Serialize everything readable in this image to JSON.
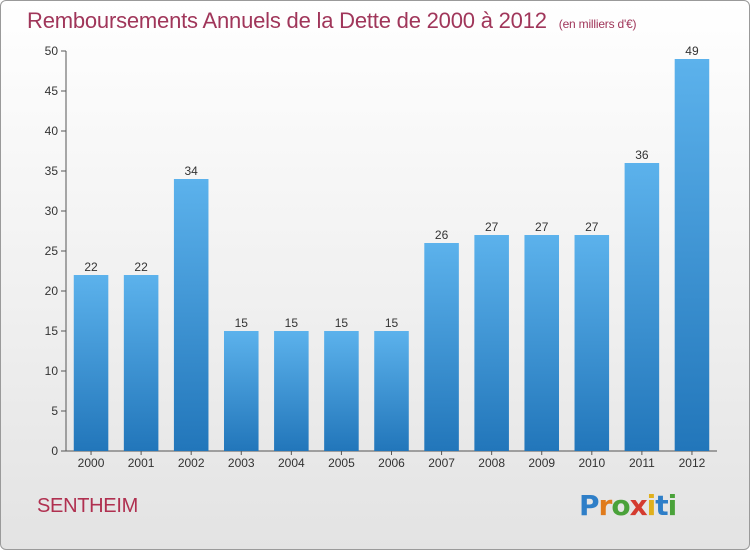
{
  "header": {
    "title": "Remboursements Annuels de la Dette de 2000 à 2012",
    "unit": "(en milliers d'€)"
  },
  "footer": {
    "commune": "SENTHEIM",
    "brand": {
      "letters": [
        "P",
        "r",
        "o",
        "x",
        "i",
        "t",
        "i"
      ],
      "colors": [
        "#2f7fc8",
        "#e07b1c",
        "#4aa23a",
        "#d43b2f",
        "#e0b01c",
        "#2f7fc8",
        "#4aa23a"
      ]
    }
  },
  "chart_data": {
    "type": "bar",
    "categories": [
      "2000",
      "2001",
      "2002",
      "2003",
      "2004",
      "2005",
      "2006",
      "2007",
      "2008",
      "2009",
      "2010",
      "2011",
      "2012"
    ],
    "values": [
      22,
      22,
      34,
      15,
      15,
      15,
      15,
      26,
      27,
      27,
      27,
      36,
      49
    ],
    "title": "Remboursements Annuels de la Dette de 2000 à 2012",
    "xlabel": "",
    "ylabel": "",
    "ylim": [
      0,
      50
    ],
    "yticks": [
      0,
      5,
      10,
      15,
      20,
      25,
      30,
      35,
      40,
      45,
      50
    ],
    "grid": false,
    "bar_color": "#3a93d8"
  }
}
